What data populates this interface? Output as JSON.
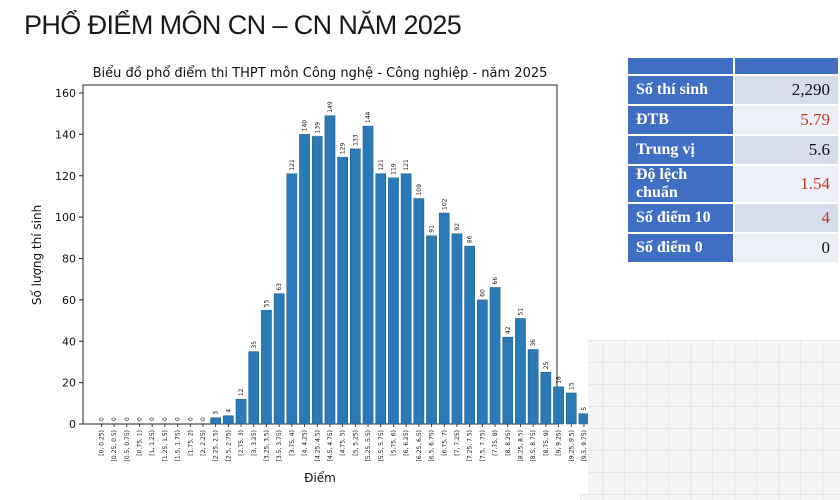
{
  "slide": {
    "title": "PHỔ ĐIỂM MÔN CN – CN NĂM 2025"
  },
  "chart_data": {
    "type": "bar",
    "title": "Biểu đồ phổ điểm thi THPT môn Công nghệ - Công nghiệp - năm 2025",
    "xlabel": "Điểm",
    "ylabel": "Số lượng thí sinh",
    "ylim": [
      0,
      160
    ],
    "yticks": [
      0,
      20,
      40,
      60,
      80,
      100,
      120,
      140,
      160
    ],
    "categories": [
      "[0, 0.25)",
      "[0.25, 0.5)",
      "[0.5, 0.75)",
      "[0.75, 1)",
      "[1, 1.25)",
      "[1.25, 1.5)",
      "[1.5, 1.75)",
      "[1.75, 2)",
      "[2, 2.25)",
      "[2.25, 2.5)",
      "[2.5, 2.75)",
      "[2.75, 3)",
      "[3, 3.25)",
      "[3.25, 3.5)",
      "[3.5, 3.75)",
      "[3.75, 4)",
      "[4, 4.25)",
      "[4.25, 4.5)",
      "[4.5, 4.75)",
      "[4.75, 5)",
      "[5, 5.25)",
      "[5.25, 5.5)",
      "[5.5, 5.75)",
      "[5.75, 6)",
      "[6, 6.25)",
      "[6.25, 6.5)",
      "[6.5, 6.75)",
      "[6.75, 7)",
      "[7, 7.25)",
      "[7.25, 7.5)",
      "[7.5, 7.75)",
      "[7.75, 8)",
      "[8, 8.25)",
      "[8.25, 8.5)",
      "[8.5, 8.75)",
      "[8.75, 9)",
      "[9, 9.25)",
      "[9.25, 9.5)",
      "[9.5, 9.75)",
      "[9.75, 10]"
    ],
    "values": [
      0,
      0,
      0,
      0,
      0,
      0,
      0,
      0,
      0,
      3,
      4,
      12,
      35,
      55,
      63,
      121,
      140,
      139,
      149,
      129,
      133,
      144,
      121,
      119,
      121,
      109,
      91,
      102,
      92,
      86,
      60,
      66,
      42,
      51,
      36,
      25,
      18,
      15,
      5,
      4
    ],
    "bar_color": "#2a7ab8",
    "grid": false
  },
  "stats": {
    "rows": [
      {
        "label": "Số thí sinh",
        "value": "2,290",
        "highlight": false
      },
      {
        "label": "ĐTB",
        "value": "5.79",
        "highlight": true
      },
      {
        "label": "Trung vị",
        "value": "5.6",
        "highlight": false
      },
      {
        "label": "Độ lệch chuẩn",
        "value": "1.54",
        "highlight": true
      },
      {
        "label": "Số điểm 10",
        "value": "4",
        "highlight": true
      },
      {
        "label": "Số điểm 0",
        "value": "0",
        "highlight": false
      }
    ],
    "label_color": "#3f6ec2",
    "highlight_color": "#c0392b"
  }
}
